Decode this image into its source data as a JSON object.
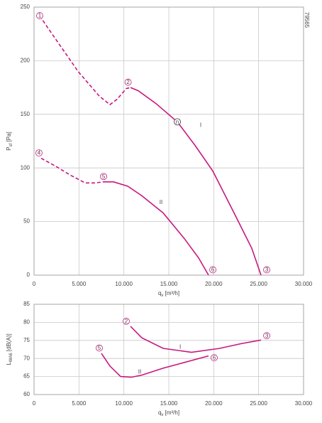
{
  "figure_number": "79565",
  "chart_data": [
    {
      "type": "line",
      "xlabel": {
        "main": "q",
        "sub": "v",
        "unit": " [m³/h]"
      },
      "ylabel": {
        "main": "P",
        "sub": "sf",
        "unit": " [Pa]"
      },
      "xlim": [
        0,
        30000
      ],
      "xticks": [
        0,
        {
          "value": 5000,
          "label": "5.000"
        },
        {
          "value": 10000,
          "label": "10.000"
        },
        {
          "value": 15000,
          "label": "15.000"
        },
        {
          "value": 20000,
          "label": "20.000"
        },
        {
          "value": 25000,
          "label": "25.000"
        },
        {
          "value": 30000,
          "label": "30.000"
        }
      ],
      "ylim": [
        0,
        250
      ],
      "yticks": [
        0,
        50,
        100,
        150,
        200,
        250
      ],
      "grid": true,
      "series": [
        {
          "color": "#c8177f",
          "dashed": true,
          "x": [
            630,
            1340,
            4900,
            7260,
            8450,
            9240,
            10260,
            10740
          ],
          "values": [
            242,
            233,
            190,
            167,
            159,
            164,
            174,
            175
          ]
        },
        {
          "color": "#c8177f",
          "dashed": false,
          "x": [
            10740,
            11600,
            13580,
            15950,
            17920,
            19900,
            22260,
            24240,
            25260
          ],
          "values": [
            175,
            172,
            160,
            143,
            121,
            97,
            58,
            25,
            0
          ]
        },
        {
          "color": "#c8177f",
          "dashed": true,
          "x": [
            790,
            2530,
            4110,
            5690,
            6870,
            7660
          ],
          "values": [
            109,
            101,
            93,
            86,
            86,
            87
          ]
        },
        {
          "color": "#c8177f",
          "dashed": false,
          "x": [
            7660,
            8840,
            10420,
            12000,
            14370,
            16740,
            18320,
            19420
          ],
          "values": [
            87,
            87,
            83,
            74,
            58,
            34,
            16,
            0
          ]
        }
      ],
      "annotations": [
        {
          "text": "1",
          "x": 630,
          "y": 242,
          "circled": true
        },
        {
          "text": "2",
          "x": 10470,
          "y": 180,
          "circled": true
        },
        {
          "text": "3",
          "x": 25900,
          "y": 5,
          "circled": true
        },
        {
          "text": "4",
          "x": 550,
          "y": 114,
          "circled": true
        },
        {
          "text": "5",
          "x": 7740,
          "y": 92,
          "circled": true
        },
        {
          "text": "6",
          "x": 19900,
          "y": 5,
          "circled": true
        },
        {
          "text": "n",
          "x": 15950,
          "y": 143,
          "circled": true
        },
        {
          "text": "I",
          "x": 18550,
          "y": 140,
          "circled": false
        },
        {
          "text": "II",
          "x": 14130,
          "y": 68,
          "circled": false
        }
      ]
    },
    {
      "type": "line",
      "xlabel": {
        "main": "q",
        "sub": "v",
        "unit": " [m³/h]"
      },
      "ylabel": {
        "main": "L",
        "sub": "WA6",
        "unit": " [dB(A)]"
      },
      "xlim": [
        0,
        30000
      ],
      "xticks": [
        0,
        {
          "value": 5000,
          "label": "5.000"
        },
        {
          "value": 10000,
          "label": "10.000"
        },
        {
          "value": 15000,
          "label": "15.000"
        },
        {
          "value": 20000,
          "label": "20.000"
        },
        {
          "value": 25000,
          "label": "25.000"
        },
        {
          "value": 30000,
          "label": "30.000"
        }
      ],
      "ylim": [
        60,
        85
      ],
      "yticks": [
        60,
        65,
        70,
        75,
        80,
        85
      ],
      "grid": true,
      "series": [
        {
          "color": "#c8177f",
          "dashed": false,
          "x": [
            10740,
            12000,
            14370,
            17530,
            20680,
            23050,
            25260
          ],
          "values": [
            78.9,
            75.7,
            72.8,
            71.7,
            72.8,
            74.1,
            75.1
          ]
        },
        {
          "color": "#c8177f",
          "dashed": false,
          "x": [
            7500,
            8450,
            9630,
            10820,
            12000,
            14370,
            16740,
            19420
          ],
          "values": [
            71.4,
            67.9,
            65.0,
            64.8,
            65.4,
            67.3,
            68.9,
            70.7
          ]
        }
      ],
      "annotations": [
        {
          "text": "2",
          "x": 10260,
          "y": 80.3,
          "circled": true
        },
        {
          "text": "3",
          "x": 25900,
          "y": 76.3,
          "circled": true
        },
        {
          "text": "5",
          "x": 7260,
          "y": 72.9,
          "circled": true
        },
        {
          "text": "6",
          "x": 20050,
          "y": 70.2,
          "circled": true
        },
        {
          "text": "I",
          "x": 16270,
          "y": 73.2,
          "circled": false
        },
        {
          "text": "II",
          "x": 11760,
          "y": 66.3,
          "circled": false
        }
      ]
    }
  ]
}
